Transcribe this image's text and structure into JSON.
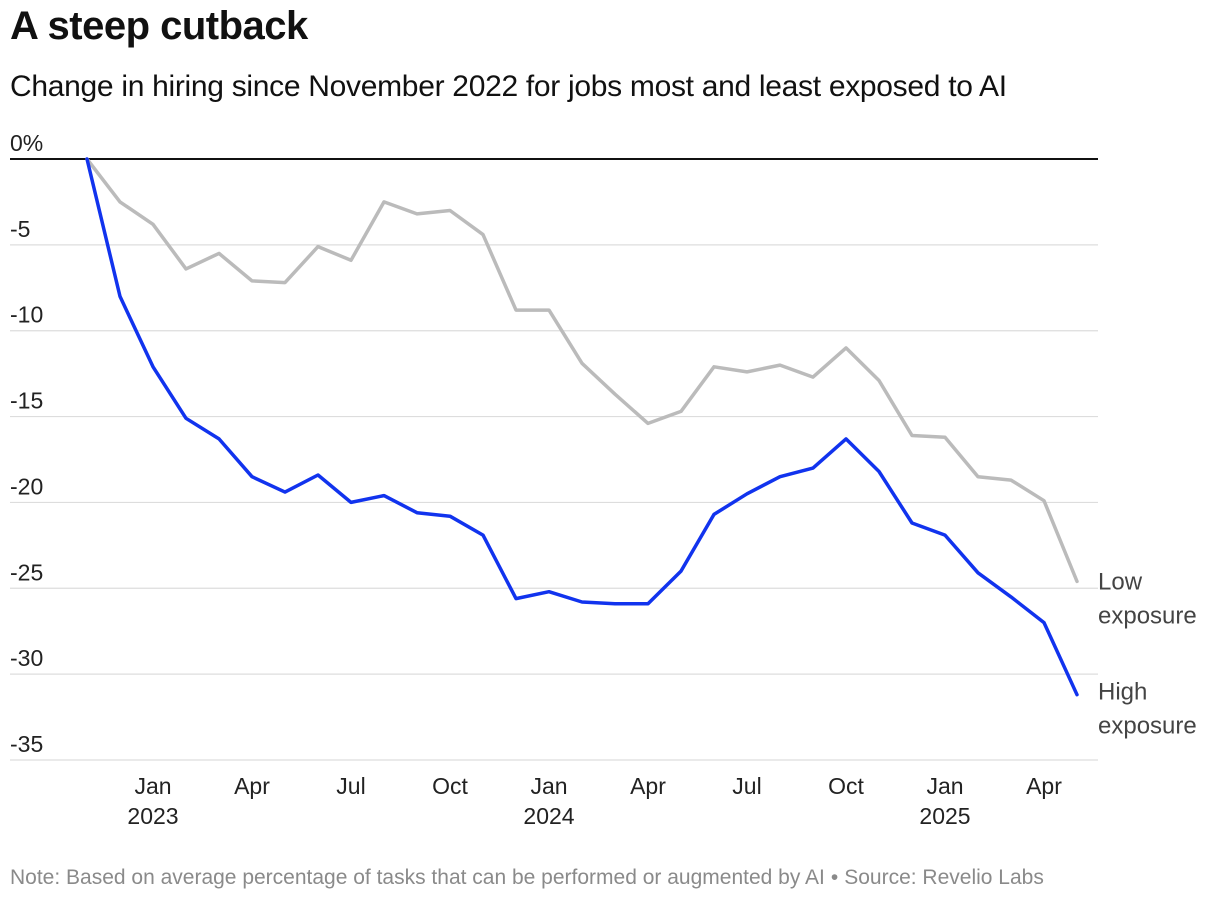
{
  "header": {
    "title": "A steep cutback",
    "subtitle": "Change in hiring since November 2022 for jobs most and least exposed to AI"
  },
  "footer": {
    "note": "Note: Based on average percentage of tasks that can be performed or augmented by AI",
    "separator": "•",
    "source": "Source: Revelio Labs"
  },
  "colors": {
    "high_exposure": "#1133ee",
    "low_exposure": "#bbbbbb",
    "baseline": "#111111",
    "grid": "#dddddd",
    "tick_text": "#222222",
    "label_text": "#444444"
  },
  "chart_data": {
    "type": "line",
    "title": "A steep cutback",
    "subtitle": "Change in hiring since November 2022 for jobs most and least exposed to AI",
    "xlabel": "",
    "ylabel": "",
    "ylim": [
      -35,
      0
    ],
    "grid": true,
    "legend": "end-of-line labels",
    "y_ticks": [
      {
        "value": 0,
        "label": "0%"
      },
      {
        "value": -5,
        "label": "-5"
      },
      {
        "value": -10,
        "label": "-10"
      },
      {
        "value": -15,
        "label": "-15"
      },
      {
        "value": -20,
        "label": "-20"
      },
      {
        "value": -25,
        "label": "-25"
      },
      {
        "value": -30,
        "label": "-30"
      },
      {
        "value": -35,
        "label": "-35"
      }
    ],
    "x": [
      "2022-11",
      "2022-12",
      "2023-01",
      "2023-02",
      "2023-03",
      "2023-04",
      "2023-05",
      "2023-06",
      "2023-07",
      "2023-08",
      "2023-09",
      "2023-10",
      "2023-11",
      "2023-12",
      "2024-01",
      "2024-02",
      "2024-03",
      "2024-04",
      "2024-05",
      "2024-06",
      "2024-07",
      "2024-08",
      "2024-09",
      "2024-10",
      "2024-11",
      "2024-12",
      "2025-01",
      "2025-02",
      "2025-03",
      "2025-04",
      "2025-05"
    ],
    "x_ticks": [
      {
        "x": "2023-01",
        "label": "Jan",
        "year": "2023"
      },
      {
        "x": "2023-04",
        "label": "Apr",
        "year": ""
      },
      {
        "x": "2023-07",
        "label": "Jul",
        "year": ""
      },
      {
        "x": "2023-10",
        "label": "Oct",
        "year": ""
      },
      {
        "x": "2024-01",
        "label": "Jan",
        "year": "2024"
      },
      {
        "x": "2024-04",
        "label": "Apr",
        "year": ""
      },
      {
        "x": "2024-07",
        "label": "Jul",
        "year": ""
      },
      {
        "x": "2024-10",
        "label": "Oct",
        "year": ""
      },
      {
        "x": "2025-01",
        "label": "Jan",
        "year": "2025"
      },
      {
        "x": "2025-04",
        "label": "Apr",
        "year": ""
      }
    ],
    "series": [
      {
        "name": "Low exposure",
        "label_lines": [
          "Low",
          "exposure"
        ],
        "color": "#bbbbbb",
        "values": [
          0,
          -2.5,
          -3.8,
          -6.4,
          -5.5,
          -7.1,
          -7.2,
          -5.1,
          -5.9,
          -2.5,
          -3.2,
          -3.0,
          -4.4,
          -8.8,
          -8.8,
          -11.9,
          -13.7,
          -15.4,
          -14.7,
          -12.1,
          -12.4,
          -12.0,
          -12.7,
          -11.0,
          -12.9,
          -16.1,
          -16.2,
          -18.5,
          -18.7,
          -19.9,
          -24.6
        ]
      },
      {
        "name": "High exposure",
        "label_lines": [
          "High",
          "exposure"
        ],
        "color": "#1133ee",
        "values": [
          0,
          -8.0,
          -12.1,
          -15.1,
          -16.3,
          -18.5,
          -19.4,
          -18.4,
          -20.0,
          -19.6,
          -20.6,
          -20.8,
          -21.9,
          -25.6,
          -25.2,
          -25.8,
          -25.9,
          -25.9,
          -24.0,
          -20.7,
          -19.5,
          -18.5,
          -18.0,
          -16.3,
          -18.2,
          -21.2,
          -21.9,
          -24.1,
          -25.5,
          -27.0,
          -31.2
        ]
      }
    ]
  }
}
